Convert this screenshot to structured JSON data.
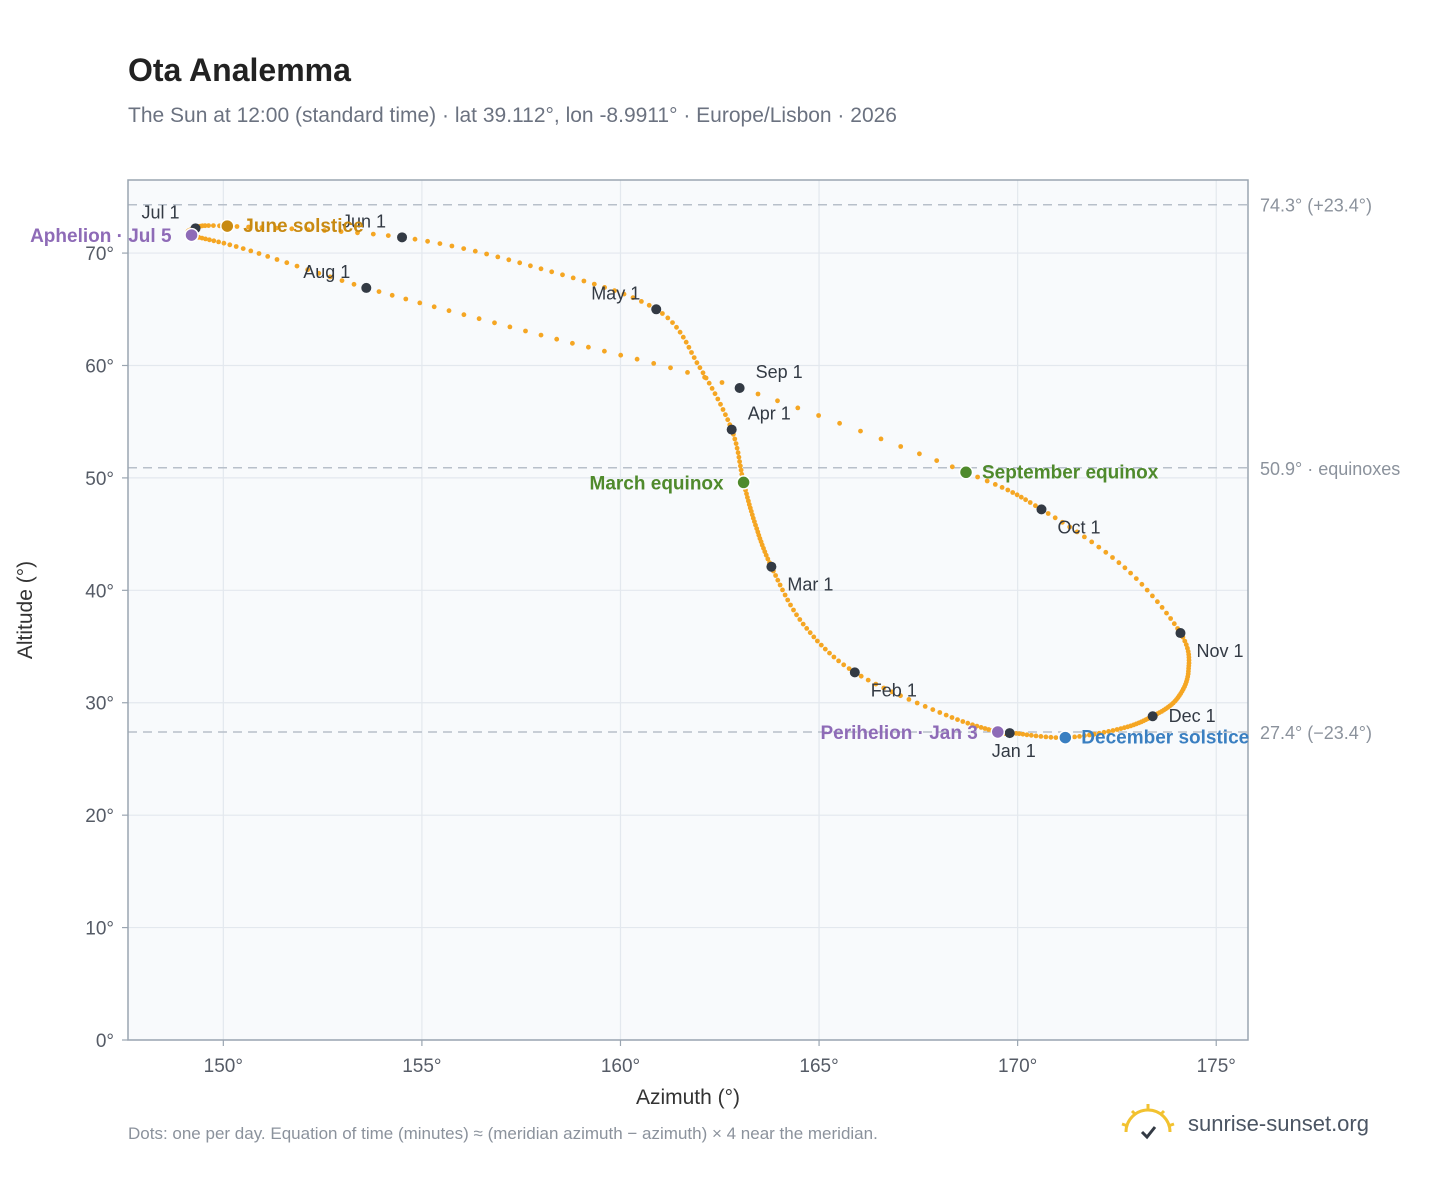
{
  "title": "Ota Analemma",
  "subtitle": "The Sun at 12:00 (standard time) · lat 39.112°, lon -8.9911° · Europe/Lisbon · 2026",
  "footnote": "Dots: one per day. Equation of time (minutes) ≈ (meridian azimuth − azimuth) × 4 near the meridian.",
  "brand": {
    "name": "sunrise-sunset.org",
    "icon": "sun-logo-icon"
  },
  "colors": {
    "curve": "#f5a623",
    "month_marker": "#333a44",
    "solstice_june": "#c88a12",
    "solstice_december": "#3a7fc1",
    "equinox": "#4f8a2c",
    "apsis": "#8e6bb7",
    "grid": "#e3e8ee",
    "plot_bg": "#f8fafc",
    "frame": "#9aa5b1",
    "refline": "#b8c0ca"
  },
  "chart_data": {
    "type": "scatter",
    "title": "Ota Analemma",
    "subtitle": "The Sun at 12:00 (standard time) · lat 39.112°, lon -8.9911° · Europe/Lisbon · 2026",
    "xlabel": "Azimuth (°)",
    "ylabel": "Altitude (°)",
    "xlim": [
      147.6,
      175.8
    ],
    "ylim": [
      0,
      76.5
    ],
    "xticks": [
      150,
      155,
      160,
      165,
      170,
      175
    ],
    "yticks": [
      0,
      10,
      20,
      30,
      40,
      50,
      60,
      70
    ],
    "x_tick_suffix": "°",
    "y_tick_suffix": "°",
    "grid": true,
    "series": [
      {
        "points_note": "one dot per day; curve passes through the anchors below in date order",
        "anchors": [
          {
            "date": "Jan 1",
            "az": 169.8,
            "alt": 27.3
          },
          {
            "date": "Jan 3",
            "az": 169.5,
            "alt": 27.4
          },
          {
            "date": "Jan 15",
            "az": 168.2,
            "alt": 28.9
          },
          {
            "date": "Feb 1",
            "az": 165.9,
            "alt": 32.7
          },
          {
            "date": "Feb 15",
            "az": 164.6,
            "alt": 37.0
          },
          {
            "date": "Mar 1",
            "az": 163.8,
            "alt": 42.1
          },
          {
            "date": "Mar 10",
            "az": 163.4,
            "alt": 45.8
          },
          {
            "date": "Mar 20",
            "az": 163.1,
            "alt": 49.6
          },
          {
            "date": "Apr 1",
            "az": 162.8,
            "alt": 54.3
          },
          {
            "date": "Apr 15",
            "az": 162.0,
            "alt": 59.8
          },
          {
            "date": "May 1",
            "az": 160.9,
            "alt": 65.0
          },
          {
            "date": "May 15",
            "az": 158.0,
            "alt": 68.6
          },
          {
            "date": "Jun 1",
            "az": 154.5,
            "alt": 71.4
          },
          {
            "date": "Jun 21",
            "az": 150.1,
            "alt": 72.4
          },
          {
            "date": "Jul 1",
            "az": 149.3,
            "alt": 72.2
          },
          {
            "date": "Jul 5",
            "az": 149.2,
            "alt": 71.6
          },
          {
            "date": "Jul 15",
            "az": 150.5,
            "alt": 70.4
          },
          {
            "date": "Aug 1",
            "az": 153.6,
            "alt": 66.9
          },
          {
            "date": "Aug 15",
            "az": 158.0,
            "alt": 62.7
          },
          {
            "date": "Sep 1",
            "az": 163.0,
            "alt": 58.0
          },
          {
            "date": "Sep 23",
            "az": 168.7,
            "alt": 50.5
          },
          {
            "date": "Oct 1",
            "az": 170.6,
            "alt": 47.2
          },
          {
            "date": "Oct 15",
            "az": 172.7,
            "alt": 42.0
          },
          {
            "date": "Nov 1",
            "az": 174.1,
            "alt": 36.2
          },
          {
            "date": "Nov 10",
            "az": 174.3,
            "alt": 32.8
          },
          {
            "date": "Nov 20",
            "az": 174.0,
            "alt": 30.3
          },
          {
            "date": "Dec 1",
            "az": 173.4,
            "alt": 28.8
          },
          {
            "date": "Dec 10",
            "az": 172.6,
            "alt": 27.7
          },
          {
            "date": "Dec 21",
            "az": 171.2,
            "alt": 26.9
          },
          {
            "date": "Dec 31",
            "az": 169.9,
            "alt": 27.3
          }
        ]
      }
    ],
    "month_markers": [
      {
        "label": "Jan 1",
        "az": 169.8,
        "alt": 27.3,
        "label_pos": "below"
      },
      {
        "label": "Feb 1",
        "az": 165.9,
        "alt": 32.7,
        "label_pos": "below-right"
      },
      {
        "label": "Mar 1",
        "az": 163.8,
        "alt": 42.1,
        "label_pos": "below-right"
      },
      {
        "label": "Apr 1",
        "az": 162.8,
        "alt": 54.3,
        "label_pos": "above-right"
      },
      {
        "label": "May 1",
        "az": 160.9,
        "alt": 65.0,
        "label_pos": "above-left"
      },
      {
        "label": "Jun 1",
        "az": 154.5,
        "alt": 71.4,
        "label_pos": "above-left"
      },
      {
        "label": "Jul 1",
        "az": 149.3,
        "alt": 72.2,
        "label_pos": "above-left"
      },
      {
        "label": "Aug 1",
        "az": 153.6,
        "alt": 66.9,
        "label_pos": "above-left"
      },
      {
        "label": "Sep 1",
        "az": 163.0,
        "alt": 58.0,
        "label_pos": "above-right"
      },
      {
        "label": "Oct 1",
        "az": 170.6,
        "alt": 47.2,
        "label_pos": "below-right"
      },
      {
        "label": "Nov 1",
        "az": 174.1,
        "alt": 36.2,
        "label_pos": "below-right"
      },
      {
        "label": "Dec 1",
        "az": 173.4,
        "alt": 28.8,
        "label_pos": "right"
      }
    ],
    "events": [
      {
        "label": "June solstice",
        "az": 150.1,
        "alt": 72.4,
        "color_key": "solstice_june",
        "label_pos": "right"
      },
      {
        "label": "December solstice",
        "az": 171.2,
        "alt": 26.9,
        "color_key": "solstice_december",
        "label_pos": "right"
      },
      {
        "label": "March equinox",
        "az": 163.1,
        "alt": 49.6,
        "color_key": "equinox",
        "label_pos": "left"
      },
      {
        "label": "September equinox",
        "az": 168.7,
        "alt": 50.5,
        "color_key": "equinox",
        "label_pos": "right"
      },
      {
        "label": "Aphelion · Jul 5",
        "az": 149.2,
        "alt": 71.6,
        "color_key": "apsis",
        "label_pos": "left"
      },
      {
        "label": "Perihelion · Jan 3",
        "az": 169.5,
        "alt": 27.4,
        "color_key": "apsis",
        "label_pos": "left"
      }
    ],
    "reference_lines": [
      {
        "alt": 74.3,
        "label": "74.3° (+23.4°)"
      },
      {
        "alt": 50.9,
        "label": "50.9° · equinoxes"
      },
      {
        "alt": 27.4,
        "label": "27.4° (−23.4°)"
      }
    ]
  }
}
